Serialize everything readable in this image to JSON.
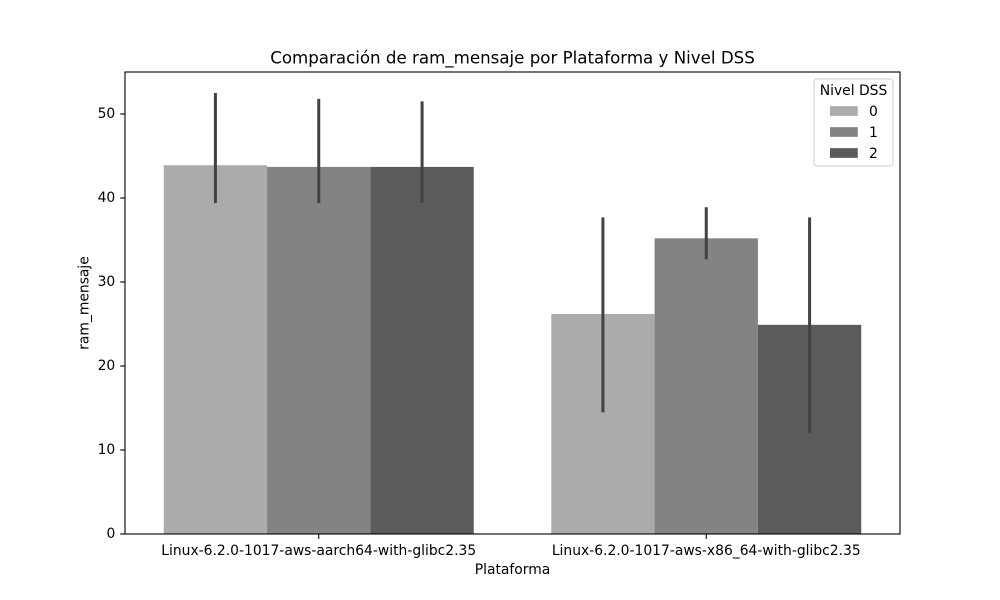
{
  "chart_data": {
    "type": "bar",
    "title": "Comparación de ram_mensaje por Plataforma y Nivel DSS",
    "xlabel": "Plataforma",
    "ylabel": "ram_mensaje",
    "categories": [
      "Linux-6.2.0-1017-aws-aarch64-with-glibc2.35",
      "Linux-6.2.0-1017-aws-x86_64-with-glibc2.35"
    ],
    "series": [
      {
        "name": "0",
        "color": "#ababab",
        "values": [
          43.9,
          26.2
        ],
        "error_low": [
          39.4,
          14.5
        ],
        "error_high": [
          52.5,
          37.7
        ]
      },
      {
        "name": "1",
        "color": "#838383",
        "values": [
          43.7,
          35.2
        ],
        "error_low": [
          39.4,
          32.7
        ],
        "error_high": [
          51.8,
          38.9
        ]
      },
      {
        "name": "2",
        "color": "#5b5b5b",
        "values": [
          43.7,
          24.9
        ],
        "error_low": [
          39.4,
          12.0
        ],
        "error_high": [
          51.5,
          37.7
        ]
      }
    ],
    "ylim": [
      0,
      55
    ],
    "yticks": [
      0,
      10,
      20,
      30,
      40,
      50
    ],
    "grid": false,
    "legend": {
      "title": "Nivel DSS",
      "placement": "top-right"
    },
    "error_bar_color": "#424242"
  }
}
